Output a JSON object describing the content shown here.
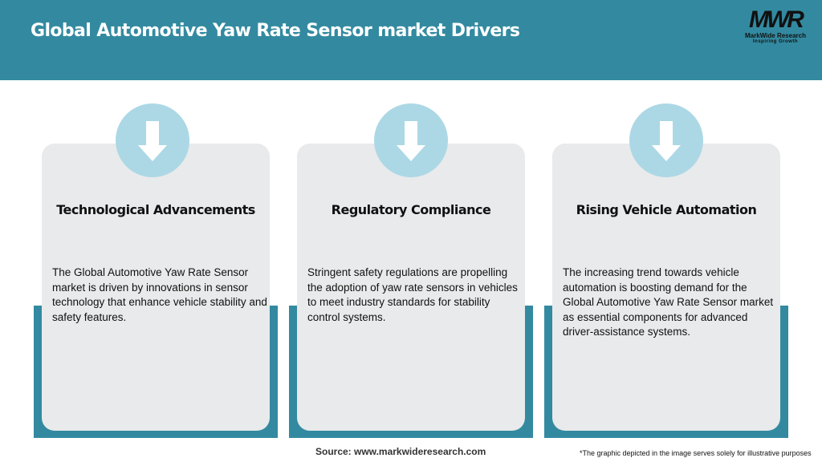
{
  "header": {
    "title": "Global Automotive Yaw Rate Sensor market Drivers",
    "background": "#338aa0"
  },
  "logo": {
    "mark": "MWR",
    "name": "MarkWide Research",
    "tagline": "Inspiring Growth"
  },
  "cards": [
    {
      "icon": "arrow-down-icon",
      "title": "Technological Advancements",
      "text": "The Global Automotive Yaw Rate Sensor market is driven by innovations in sensor technology that enhance vehicle stability and safety features."
    },
    {
      "icon": "arrow-down-icon",
      "title": "Regulatory Compliance",
      "text": "Stringent safety regulations are propelling the adoption of yaw rate sensors in vehicles to meet industry standards for stability control systems."
    },
    {
      "icon": "arrow-down-icon",
      "title": "Rising Vehicle Automation",
      "text": "The increasing trend towards vehicle automation is boosting demand for the Global Automotive Yaw Rate Sensor market as essential components for advanced driver-assistance systems."
    }
  ],
  "footer": {
    "source": "Source: www.markwideresearch.com",
    "note": "*The graphic depicted in the image serves solely for illustrative purposes"
  }
}
